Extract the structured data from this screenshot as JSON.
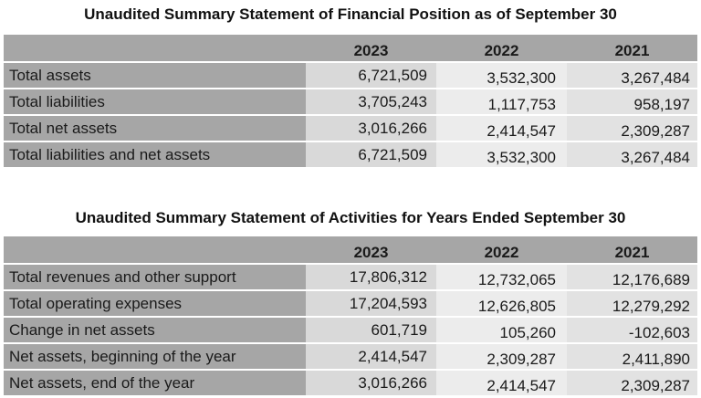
{
  "position": {
    "title": "Unaudited Summary Statement of Financial Position as of September 30",
    "columns": [
      "",
      "2023",
      "2022",
      "2021"
    ],
    "rows": [
      {
        "label": "Total assets",
        "y2023": "6,721,509",
        "y2022": "3,532,300",
        "y2021": "3,267,484"
      },
      {
        "label": "Total liabilities",
        "y2023": "3,705,243",
        "y2022": "1,117,753",
        "y2021": "958,197"
      },
      {
        "label": "Total net assets",
        "y2023": "3,016,266",
        "y2022": "2,414,547",
        "y2021": "2,309,287"
      },
      {
        "label": "Total liabilities and net assets",
        "y2023": "6,721,509",
        "y2022": "3,532,300",
        "y2021": "3,267,484"
      }
    ]
  },
  "activities": {
    "title": "Unaudited Summary Statement of Activities for Years Ended September 30",
    "columns": [
      "",
      "2023",
      "2022",
      "2021"
    ],
    "rows": [
      {
        "label": "Total revenues and other support",
        "y2023": "17,806,312",
        "y2022": "12,732,065",
        "y2021": "12,176,689"
      },
      {
        "label": "Total operating expenses",
        "y2023": "17,204,593",
        "y2022": "12,626,805",
        "y2021": "12,279,292"
      },
      {
        "label": "Change in net assets",
        "y2023": "601,719",
        "y2022": "105,260",
        "y2021": "-102,603"
      },
      {
        "label": "Net assets, beginning of the year",
        "y2023": "2,414,547",
        "y2022": "2,309,287",
        "y2021": "2,411,890"
      },
      {
        "label": "Net assets, end of the year",
        "y2023": "3,016,266",
        "y2022": "2,414,547",
        "y2021": "2,309,287"
      }
    ]
  }
}
